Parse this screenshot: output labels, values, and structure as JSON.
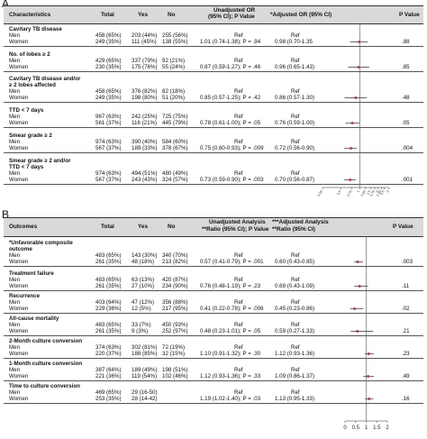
{
  "panelA": {
    "letter": "A",
    "headers": {
      "characteristics": "Characteristics",
      "total": "Total",
      "yes": "Yes",
      "no": "No",
      "unadjusted_l1": "Unadjusted OR",
      "unadjusted_l2": "(95% CI); P Value",
      "adjusted": "*Adjusted OR (95% CI)",
      "pvalue": "P Value"
    },
    "groups": [
      {
        "label": [
          "Cavitary TB disease"
        ],
        "rows": [
          {
            "label": "Men",
            "total": "458 (65%)",
            "yes": "203 (44%)",
            "no": "255 (56%)",
            "unadj": "Ref",
            "adj": "Ref",
            "p": ""
          },
          {
            "label": "Women",
            "total": "249 (35%)",
            "yes": "111 (45%)",
            "no": "138 (55%)",
            "unadj": "1.01 (0.74-1.38); P = .94",
            "adj": "0.98 (0.70-1.35",
            "p": ".88"
          }
        ]
      },
      {
        "label": [
          "No. of lobes ≥ 2"
        ],
        "rows": [
          {
            "label": "Men",
            "total": "429 (65%)",
            "yes": "337 (79%)",
            "no": "92 (21%)",
            "unadj": "Ref",
            "adj": "Ref",
            "p": ""
          },
          {
            "label": "Women",
            "total": "230 (35%)",
            "yes": "175 (76%)",
            "no": "55 (24%)",
            "unadj": "0.87 (0.59-1.27); P = .46",
            "adj": "0.96 (0.65-1.43)",
            "p": ".85"
          }
        ]
      },
      {
        "label": [
          "Cavitary TB disease and/or",
          "≥ 2 lobes affected"
        ],
        "rows": [
          {
            "label": "Men",
            "total": "458 (65%)",
            "yes": "376 (82%)",
            "no": "82 (18%)",
            "unadj": "Ref",
            "adj": "Ref",
            "p": ""
          },
          {
            "label": "Women",
            "total": "249 (35%)",
            "yes": "198 (80%)",
            "no": "51 (20%)",
            "unadj": "0.85 (0.57-1.25); P = .42",
            "adj": "0.86 (0.57-1.30)",
            "p": ".48"
          }
        ]
      },
      {
        "label": [
          "TTD < 7 days"
        ],
        "rows": [
          {
            "label": "Men",
            "total": "967 (63%)",
            "yes": "242 (25%)",
            "no": "725 (75%)",
            "unadj": "Ref",
            "adj": "Ref",
            "p": ""
          },
          {
            "label": "Women",
            "total": "561 (37%)",
            "yes": "116 (21%)",
            "no": "445 (79%)",
            "unadj": "0.78 (0.61-1.00); P = .05",
            "adj": "0.76 (0.59-1.00)",
            "p": ".05"
          }
        ]
      },
      {
        "label": [
          "Smear grade ≥ 2"
        ],
        "rows": [
          {
            "label": "Men",
            "total": "974 (63%)",
            "yes": "390 (40%)",
            "no": "584 (60%)",
            "unadj": "Ref",
            "adj": "Ref",
            "p": ""
          },
          {
            "label": "Women",
            "total": "567 (37%)",
            "yes": "189 (33%)",
            "no": "378 (67%)",
            "unadj": "0.75 (0.60-0.93); P = .009",
            "adj": "0.72 (0.56-0.90)",
            "p": ".004"
          }
        ]
      },
      {
        "label": [
          "Smear grade ≥ 2 and/or",
          "TTD < 7 days"
        ],
        "rows": [
          {
            "label": "Men",
            "total": "974 (63%)",
            "yes": "494 (51%)",
            "no": "480 (49%)",
            "unadj": "Ref",
            "adj": "Ref",
            "p": ""
          },
          {
            "label": "Women",
            "total": "567 (37%)",
            "yes": "243 (43%)",
            "no": "324 (57%)",
            "unadj": "0.73 (0.59-0.90); P = .003",
            "adj": "0.70 (0.56-0.87)",
            "p": ".001"
          }
        ]
      }
    ],
    "forest": {
      "scale": "log",
      "ticks": [
        "0.25",
        "0.5",
        "0.75",
        "1",
        "1.25",
        "1.5",
        "1.75",
        "2",
        "2.25",
        "2.5",
        "3"
      ],
      "tick_values": [
        0.25,
        0.5,
        0.75,
        1,
        1.25,
        1.5,
        1.75,
        2,
        2.25,
        2.5,
        3
      ],
      "points": [
        {
          "or": 0.98,
          "lo": 0.7,
          "hi": 1.35
        },
        {
          "or": 0.96,
          "lo": 0.65,
          "hi": 1.43
        },
        {
          "or": 0.86,
          "lo": 0.57,
          "hi": 1.3
        },
        {
          "or": 0.76,
          "lo": 0.59,
          "hi": 1.0
        },
        {
          "or": 0.72,
          "lo": 0.56,
          "hi": 0.9
        },
        {
          "or": 0.7,
          "lo": 0.56,
          "hi": 0.87
        }
      ]
    }
  },
  "panelB": {
    "letter": "B",
    "headers": {
      "outcomes": "Outcomes",
      "total": "Total",
      "yes": "Yes",
      "no": "No",
      "unadjusted_l1": "Unadjusted Analysis",
      "unadjusted_l2": "**Ratio (95% CI); P Value",
      "adjusted_l1": "***Adjusted Analysis",
      "adjusted_l2": "**Ratio (95% CI)",
      "pvalue": "P Value"
    },
    "groups": [
      {
        "label": [
          "*Unfavorable composite",
          "outcome"
        ],
        "rows": [
          {
            "label": "Men",
            "total": "483 (65%)",
            "yes": "143 (30%)",
            "no": "340 (70%)",
            "unadj": "Ref",
            "adj": "Ref",
            "p": ""
          },
          {
            "label": "Women",
            "total": "261 (35%)",
            "yes": "48 (18%)",
            "no": "213 (82%)",
            "unadj": "0.57 (0.41-0.79); P = .001",
            "adj": "0.60 (0.43-0.85)",
            "p": ".003"
          }
        ]
      },
      {
        "label": [
          "Treatment failure"
        ],
        "rows": [
          {
            "label": "Men",
            "total": "483 (65%)",
            "yes": "63 (13%)",
            "no": "420 (87%)",
            "unadj": "Ref",
            "adj": "Ref",
            "p": ""
          },
          {
            "label": "Women",
            "total": "261 (35%)",
            "yes": "27 (10%)",
            "no": "234 (90%)",
            "unadj": "0.76 (0.48-1.19); P = .23",
            "adj": "0.69 (0.43-1.09)",
            "p": ".11"
          }
        ]
      },
      {
        "label": [
          "Recurrence"
        ],
        "rows": [
          {
            "label": "Men",
            "total": "403 (64%)",
            "yes": "47 (12%)",
            "no": "356 (88%)",
            "unadj": "Ref",
            "adj": "Ref",
            "p": ""
          },
          {
            "label": "Women",
            "total": "229 (36%)",
            "yes": "12 (5%)",
            "no": "217 (95%)",
            "unadj": "0.41 (0.22-0.78); P = .006",
            "adj": "0.45 (0.23-0.86)",
            "p": ".02"
          }
        ]
      },
      {
        "label": [
          "All-cause mortality"
        ],
        "rows": [
          {
            "label": "Men",
            "total": "483 (65%)",
            "yes": "33 (7%)",
            "no": "450 (93%)",
            "unadj": "Ref",
            "adj": "Ref",
            "p": ""
          },
          {
            "label": "Women",
            "total": "261 (35%)",
            "yes": "9 (3%)",
            "no": "252 (97%)",
            "unadj": "0.48 (0.23-1.01); P = .05",
            "adj": "0.59 (0.27-1.33)",
            "p": ".21"
          }
        ]
      },
      {
        "label": [
          "2-Month culture conversion"
        ],
        "rows": [
          {
            "label": "Men",
            "total": "374 (63%)",
            "yes": "302 (81%)",
            "no": "72 (19%)",
            "unadj": "Ref",
            "adj": "Ref",
            "p": ""
          },
          {
            "label": "Women",
            "total": "220 (37%)",
            "yes": "188 (85%)",
            "no": "32 (15%)",
            "unadj": "1.10 (0.91-1.32); P = .30",
            "adj": "1.12 (0.93-1.36)",
            "p": ".23"
          }
        ]
      },
      {
        "label": [
          "1-Month culture conversion"
        ],
        "rows": [
          {
            "label": "Men",
            "total": "387 (64%)",
            "yes": "189 (49%)",
            "no": "198 (51%)",
            "unadj": "Ref",
            "adj": "Ref",
            "p": ""
          },
          {
            "label": "Women",
            "total": "221 (36%)",
            "yes": "119 (54%)",
            "no": "102 (46%)",
            "unadj": "1.12 (0.93-1.36); P = .33",
            "adj": "1.09 (0.86-1.37)",
            "p": ".49"
          }
        ]
      },
      {
        "label": [
          "Time to culture conversion"
        ],
        "rows": [
          {
            "label": "Men",
            "total": "469 (65%)",
            "yes": "29 (16-50)",
            "no": "",
            "unadj": "Ref",
            "adj": "Ref",
            "p": ""
          },
          {
            "label": "Women",
            "total": "253 (35%)",
            "yes": "28 (14-42)",
            "no": "",
            "unadj": "1.19 (1.02-1.40); P = .03",
            "adj": "1.13 (0.95-1.33)",
            "p": ".16"
          }
        ]
      }
    ],
    "forest": {
      "scale": "linear",
      "ticks": [
        "0",
        "0.5",
        "1",
        "1.5",
        "2"
      ],
      "tick_values": [
        0,
        0.5,
        1,
        1.5,
        2
      ],
      "points": [
        {
          "or": 0.6,
          "lo": 0.43,
          "hi": 0.85
        },
        {
          "or": 0.69,
          "lo": 0.43,
          "hi": 1.09
        },
        {
          "or": 0.45,
          "lo": 0.23,
          "hi": 0.86
        },
        {
          "or": 0.59,
          "lo": 0.27,
          "hi": 1.33
        },
        {
          "or": 1.12,
          "lo": 0.93,
          "hi": 1.36
        },
        {
          "or": 1.09,
          "lo": 0.86,
          "hi": 1.37
        },
        {
          "or": 1.13,
          "lo": 0.95,
          "hi": 1.33
        }
      ]
    }
  },
  "colors": {
    "header_bg": "#d9d9d9",
    "point": "#b0355a",
    "ci_line": "#333333"
  }
}
